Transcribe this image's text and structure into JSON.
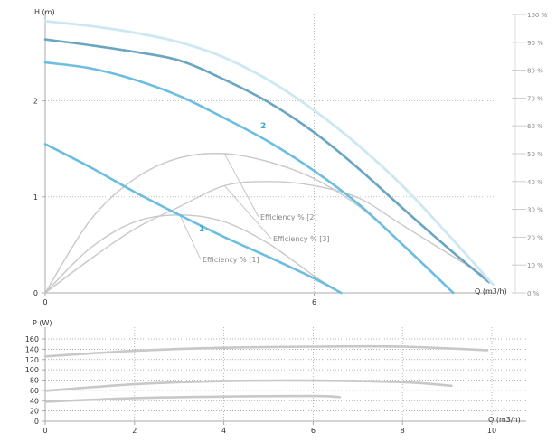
{
  "chart_data": [
    {
      "type": "line",
      "xlabel": "Q (m3/h)",
      "ylabel": "H (m)",
      "xlim": [
        0,
        10
      ],
      "ylim": [
        0,
        2.9
      ],
      "x_ticks": [
        "0",
        "6"
      ],
      "y_ticks": [
        "0",
        "1",
        "2"
      ],
      "eff_ticks": [
        "0 %",
        "10 %",
        "20 %",
        "30 %",
        "40 %",
        "50 %",
        "60 %",
        "70 %",
        "80 %",
        "90 %",
        "100 %"
      ],
      "series": [
        {
          "name": "1",
          "color": "#6cbde0",
          "x": [
            0,
            1,
            2,
            3,
            4,
            5,
            6,
            6.6
          ],
          "values": [
            1.55,
            1.31,
            1.05,
            0.81,
            0.58,
            0.37,
            0.15,
            0
          ]
        },
        {
          "name": "2",
          "color": "#6cbde0",
          "x": [
            0,
            1,
            2,
            3,
            4,
            5,
            6,
            7,
            8,
            9.1
          ],
          "values": [
            2.4,
            2.34,
            2.22,
            2.05,
            1.82,
            1.57,
            1.27,
            0.92,
            0.49,
            0
          ]
        },
        {
          "name": "",
          "color": "#6aa5c2",
          "x": [
            0,
            1,
            2,
            3,
            4,
            5,
            6,
            7,
            8,
            9,
            9.9
          ],
          "values": [
            2.64,
            2.58,
            2.51,
            2.42,
            2.22,
            1.98,
            1.67,
            1.29,
            0.87,
            0.46,
            0.11
          ]
        },
        {
          "name": "",
          "color": "#cde8f3",
          "dotted": true,
          "x": [
            0,
            1,
            2,
            3,
            4,
            5,
            6,
            7,
            8,
            9,
            10
          ],
          "values": [
            2.83,
            2.78,
            2.71,
            2.61,
            2.45,
            2.21,
            1.9,
            1.53,
            1.1,
            0.6,
            0.08
          ]
        }
      ],
      "efficiency_series": [
        {
          "name": "Efficiency % [1]",
          "x": [
            0,
            1,
            2,
            3,
            4,
            5,
            6,
            6.6
          ],
          "values": [
            0,
            16,
            25.5,
            28,
            25.5,
            17.5,
            6,
            0
          ]
        },
        {
          "name": "Efficiency % [2]",
          "x": [
            0,
            1,
            2,
            3,
            4,
            5,
            6,
            7,
            8,
            9.1
          ],
          "values": [
            0,
            26,
            41,
            48.5,
            50,
            47,
            41,
            31,
            17,
            0
          ]
        },
        {
          "name": "Efficiency % [3]",
          "x": [
            0,
            1,
            2,
            3,
            4,
            5,
            6,
            7,
            8,
            9.9
          ],
          "values": [
            0,
            12,
            23,
            31,
            38.5,
            40,
            38.5,
            34,
            24,
            5
          ]
        }
      ]
    },
    {
      "type": "line",
      "xlabel": "Q (m3/h)",
      "ylabel": "P (W)",
      "xlim": [
        0,
        10
      ],
      "ylim": [
        0,
        160
      ],
      "x_ticks": [
        "0",
        "2",
        "4",
        "6",
        "8",
        "10"
      ],
      "y_ticks": [
        "0",
        "20",
        "40",
        "60",
        "80",
        "100",
        "120",
        "140",
        "160"
      ],
      "series": [
        {
          "name": "",
          "x": [
            0,
            2,
            4,
            6,
            8,
            9.9
          ],
          "values": [
            126,
            137,
            143,
            145,
            145,
            138
          ]
        },
        {
          "name": "",
          "x": [
            0,
            2,
            4,
            6,
            8,
            9.1
          ],
          "values": [
            59,
            72,
            78,
            79,
            76,
            69
          ]
        },
        {
          "name": "",
          "x": [
            0,
            2,
            4,
            6,
            6.6
          ],
          "values": [
            38,
            45,
            48,
            49,
            47
          ]
        }
      ]
    }
  ]
}
